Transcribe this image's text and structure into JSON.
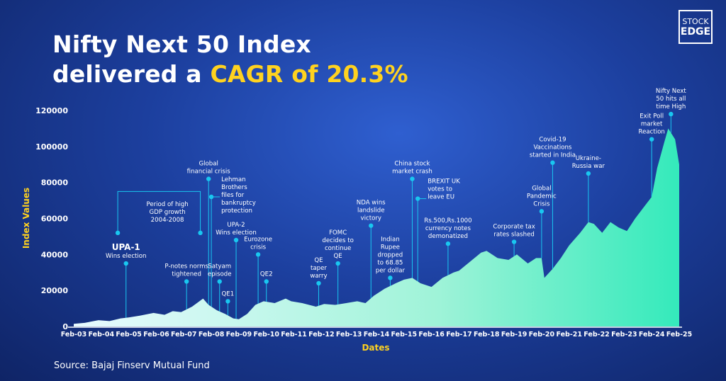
{
  "header": {
    "title_line1": "Nifty Next 50 Index",
    "title_line2_prefix": "delivered a ",
    "title_line2_highlight": "CAGR of 20.3%",
    "logo_line1": "STOCK",
    "logo_line2": "EDGE"
  },
  "footer": {
    "source": "Source: Bajaj Finserv Mutual Fund"
  },
  "colors": {
    "accent": "#ffd21f",
    "area_top": "#3ff0c0",
    "area_bottom": "#e8fbff",
    "annotation": "#19c7f0",
    "background": "#1c3f9e"
  },
  "chart_data": {
    "type": "area",
    "xlabel": "Dates",
    "ylabel": "Index Values",
    "ylim": [
      0,
      120000
    ],
    "yticks": [
      0,
      20000,
      40000,
      60000,
      80000,
      100000,
      120000
    ],
    "grid": false,
    "xticks": [
      "Feb-03",
      "Feb-04",
      "Feb-05",
      "Feb-06",
      "Feb-07",
      "Feb-08",
      "Feb-09",
      "Feb-10",
      "Feb-11",
      "Feb-12",
      "Feb-13",
      "Feb-14",
      "Feb-15",
      "Feb-16",
      "Feb-17",
      "Feb-18",
      "Feb-19",
      "Feb-20",
      "Feb-21",
      "Feb-22",
      "Feb-23",
      "Feb-24",
      "Feb-25"
    ],
    "series": [
      {
        "x": [
          2003.1,
          2003.5,
          2004.0,
          2004.4,
          2004.8,
          2005.1,
          2005.5,
          2006.0,
          2006.4,
          2006.7,
          2007.0,
          2007.4,
          2007.8,
          2008.0,
          2008.3,
          2008.6,
          2008.9,
          2009.1,
          2009.4,
          2009.7,
          2010.0,
          2010.4,
          2010.8,
          2011.0,
          2011.4,
          2011.9,
          2012.2,
          2012.6,
          2013.0,
          2013.4,
          2013.7,
          2014.0,
          2014.4,
          2014.8,
          2015.1,
          2015.4,
          2015.7,
          2016.1,
          2016.5,
          2016.9,
          2017.1,
          2017.5,
          2017.9,
          2018.1,
          2018.5,
          2018.9,
          2019.2,
          2019.6,
          2019.9,
          2020.1,
          2020.2,
          2020.5,
          2020.8,
          2021.1,
          2021.5,
          2021.8,
          2022.0,
          2022.3,
          2022.6,
          2022.9,
          2023.2,
          2023.5,
          2023.8,
          2024.1,
          2024.3,
          2024.55,
          2024.7,
          2024.95,
          2025.1
        ],
        "y": [
          1500,
          2000,
          3500,
          3000,
          4500,
          5000,
          6000,
          7500,
          6500,
          8500,
          8000,
          11000,
          15500,
          12000,
          9000,
          7000,
          4500,
          4000,
          7000,
          12000,
          14000,
          13000,
          15500,
          14000,
          13000,
          11000,
          12500,
          12000,
          13000,
          14000,
          13000,
          17000,
          21000,
          24000,
          26000,
          27000,
          24000,
          22000,
          27000,
          30000,
          31000,
          36000,
          41000,
          42000,
          38000,
          37000,
          40000,
          35000,
          38000,
          38000,
          27000,
          32000,
          38000,
          45000,
          52000,
          58000,
          57000,
          52000,
          58000,
          55000,
          53000,
          60000,
          66000,
          72000,
          88000,
          102000,
          110000,
          104000,
          90000
        ]
      }
    ],
    "annotations": [
      {
        "x": 2004.7,
        "y": 52000,
        "text_lines": [
          "Period of high",
          "GDP growth",
          "2004-2008"
        ],
        "anchor": "left"
      },
      {
        "x": 2005.0,
        "y": 35000,
        "text_lines": [
          "UPA-1",
          "Wins election"
        ],
        "anchor": "above"
      },
      {
        "x": 2007.2,
        "y": 25000,
        "text_lines": [
          "P-notes norms",
          "tightened"
        ],
        "anchor": "above"
      },
      {
        "x": 2008.0,
        "y": 82000,
        "text_lines": [
          "Global",
          "financial crisis"
        ],
        "anchor": "above"
      },
      {
        "x": 2008.1,
        "y": 72000,
        "text_lines": [
          "Lehman",
          "Brothers",
          "files for",
          "bankruptcy",
          "protection"
        ],
        "anchor": "right"
      },
      {
        "x": 2008.4,
        "y": 25000,
        "text_lines": [
          "Satyam",
          "episode"
        ],
        "anchor": "above"
      },
      {
        "x": 2008.7,
        "y": 14000,
        "text_lines": [
          "QE1"
        ],
        "anchor": "above"
      },
      {
        "x": 2009.0,
        "y": 48000,
        "text_lines": [
          "UPA-2",
          "Wins election"
        ],
        "anchor": "above"
      },
      {
        "x": 2009.8,
        "y": 40000,
        "text_lines": [
          "Eurozone",
          "crisis"
        ],
        "anchor": "above"
      },
      {
        "x": 2010.1,
        "y": 25000,
        "text_lines": [
          "QE2"
        ],
        "anchor": "above"
      },
      {
        "x": 2012.0,
        "y": 24000,
        "text_lines": [
          "QE",
          "taper",
          "warry"
        ],
        "anchor": "above"
      },
      {
        "x": 2012.7,
        "y": 35000,
        "text_lines": [
          "FOMC",
          "decides to",
          "continue",
          "QE"
        ],
        "anchor": "above"
      },
      {
        "x": 2013.9,
        "y": 56000,
        "text_lines": [
          "NDA wins",
          "landslide",
          "victory"
        ],
        "anchor": "below"
      },
      {
        "x": 2014.6,
        "y": 27000,
        "text_lines": [
          "Indian",
          "Rupee",
          "dropped",
          "to 68.85",
          "per dollar"
        ],
        "anchor": "above"
      },
      {
        "x": 2015.4,
        "y": 82000,
        "text_lines": [
          "China stock",
          "market crash"
        ],
        "anchor": "above"
      },
      {
        "x": 2015.6,
        "y": 71000,
        "text_lines": [
          "BREXIT UK",
          "votes to",
          "leave EU"
        ],
        "anchor": "right"
      },
      {
        "x": 2016.7,
        "y": 46000,
        "text_lines": [
          "Rs.500,Rs.1000",
          "currency notes",
          "demonatized"
        ],
        "anchor": "above"
      },
      {
        "x": 2019.1,
        "y": 47000,
        "text_lines": [
          "Corporate tax",
          "rates slashed"
        ],
        "anchor": "above"
      },
      {
        "x": 2020.1,
        "y": 64000,
        "text_lines": [
          "Global",
          "Pandemic",
          "Crisis"
        ],
        "anchor": "above"
      },
      {
        "x": 2020.5,
        "y": 91000,
        "text_lines": [
          "Covid-19",
          "Vaccinations",
          "started in India"
        ],
        "anchor": "above"
      },
      {
        "x": 2021.8,
        "y": 85000,
        "text_lines": [
          "Ukraine-",
          "Russia war"
        ],
        "anchor": "above"
      },
      {
        "x": 2024.1,
        "y": 104000,
        "text_lines": [
          "Exit Poll",
          "market",
          "Reaction"
        ],
        "anchor": "above"
      },
      {
        "x": 2024.8,
        "y": 118000,
        "text_lines": [
          "Nifty Next",
          "50 hits all",
          "time High"
        ],
        "anchor": "above"
      }
    ]
  }
}
